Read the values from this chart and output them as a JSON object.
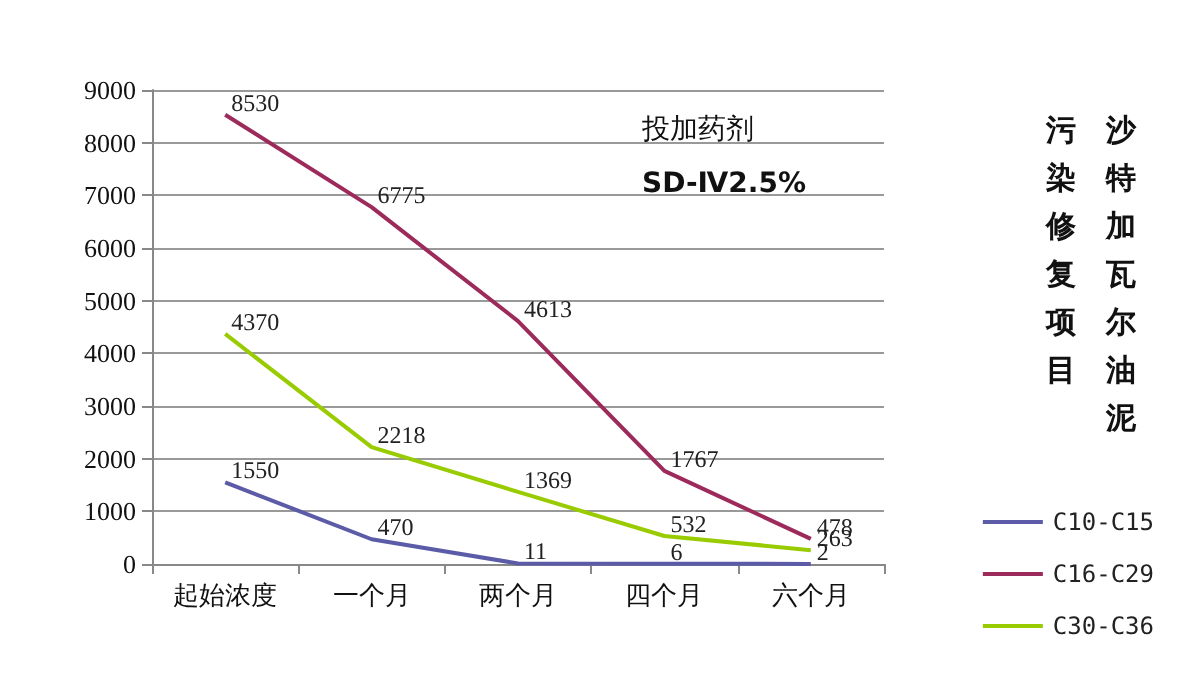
{
  "chart_data": {
    "type": "line",
    "categories": [
      "起始浓度",
      "一个月",
      "两个月",
      "四个月",
      "六个月"
    ],
    "series": [
      {
        "name": "C10-C15",
        "color": "#5b5ba8",
        "values": [
          1550,
          470,
          11,
          6,
          2
        ]
      },
      {
        "name": "C16-C29",
        "color": "#9c2a5a",
        "values": [
          8530,
          6775,
          4613,
          1767,
          478
        ]
      },
      {
        "name": "C30-C36",
        "color": "#99cc00",
        "values": [
          4370,
          2218,
          1369,
          532,
          263
        ]
      }
    ],
    "ylim": [
      0,
      9000
    ],
    "yticks": [
      0,
      1000,
      2000,
      3000,
      4000,
      5000,
      6000,
      7000,
      8000,
      9000
    ],
    "grid": "y",
    "legend": "bottom right",
    "marker": "none",
    "line_style": "solid",
    "data_labels": true,
    "annotations": [
      "投加药剂",
      "SD-Ⅳ2.5%",
      "沙特加瓦尔油泥",
      "污染修复项目"
    ]
  }
}
